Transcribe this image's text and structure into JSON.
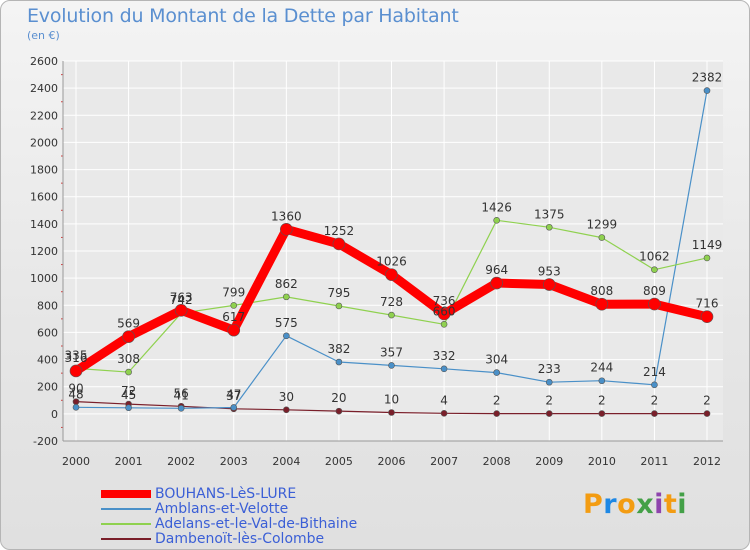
{
  "header": {
    "title": "Evolution du Montant de la Dette par Habitant",
    "subtitle": "(en €)"
  },
  "logo": {
    "letters": [
      "P",
      "r",
      "o",
      "x",
      "i",
      "t",
      "i"
    ],
    "colors": [
      "#f39c12",
      "#1e88e5",
      "#f39c12",
      "#43a047",
      "#8e44ad",
      "#f39c12",
      "#43a047"
    ]
  },
  "chart_data": {
    "type": "line",
    "title": "Evolution du Montant de la Dette par Habitant",
    "subtitle": "(en €)",
    "xlabel": "",
    "ylabel": "",
    "x": [
      "2000",
      "2001",
      "2002",
      "2003",
      "2004",
      "2005",
      "2006",
      "2007",
      "2008",
      "2009",
      "2010",
      "2011",
      "2012"
    ],
    "ylim": [
      -200,
      2600
    ],
    "yticks": [
      -200,
      0,
      200,
      400,
      600,
      800,
      1000,
      1200,
      1400,
      1600,
      1800,
      2000,
      2200,
      2400,
      2600
    ],
    "grid": true,
    "legend_position": "bottom-left",
    "series": [
      {
        "name": "Dambenoït-lès-Colombe",
        "color": "#7a1f2a",
        "values": [
          90,
          72,
          56,
          37,
          30,
          20,
          10,
          4,
          2,
          2,
          2,
          2,
          2
        ]
      },
      {
        "name": "Amblans-et-Velotte",
        "color": "#4a90c8",
        "values": [
          48,
          45,
          41,
          47,
          575,
          382,
          357,
          332,
          304,
          233,
          244,
          214,
          2382
        ]
      },
      {
        "name": "Adelans-et-le-Val-de-Bithaine",
        "color": "#8fd14f",
        "values": [
          335,
          308,
          742,
          799,
          862,
          795,
          728,
          660,
          1426,
          1375,
          1299,
          1062,
          1149
        ]
      },
      {
        "name": "BOUHANS-LèS-LURE",
        "color": "#ff0000",
        "values": [
          316,
          569,
          763,
          617,
          1360,
          1252,
          1026,
          736,
          964,
          953,
          808,
          809,
          716
        ]
      }
    ],
    "legend_order": [
      "BOUHANS-LèS-LURE",
      "Amblans-et-Velotte",
      "Adelans-et-le-Val-de-Bithaine",
      "Dambenoït-lès-Colombe"
    ]
  }
}
